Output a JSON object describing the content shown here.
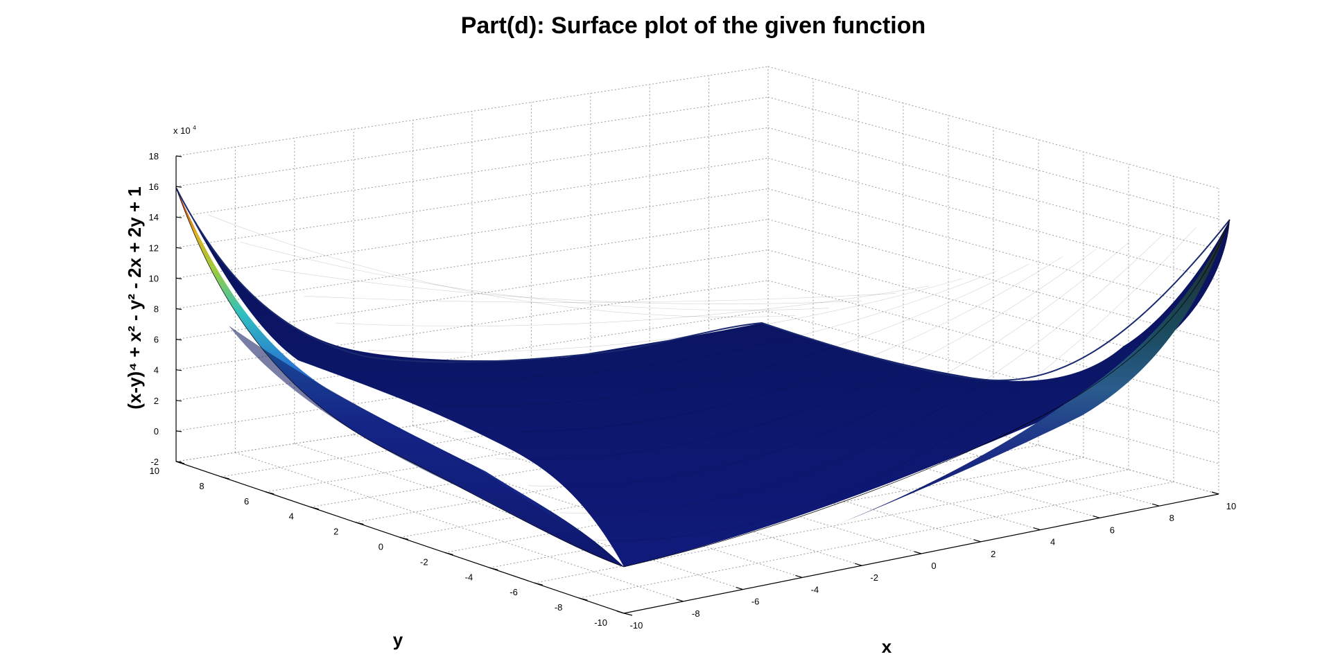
{
  "chart_data": {
    "type": "surface",
    "title": "Part(d): Surface plot of the given function",
    "function": "(x-y)^4 + x^2 - y^2 - 2x + 2y + 1",
    "xlabel": "x",
    "ylabel": "y",
    "zlabel": "(x-y)⁴ + x² - y² - 2x + 2y + 1",
    "xlim": [
      -10,
      10
    ],
    "ylim": [
      -10,
      10
    ],
    "zlim": [
      -2,
      18
    ],
    "z_multiplier": "x 10",
    "z_multiplier_exp": "4",
    "x_ticks": [
      "-10",
      "-8",
      "-6",
      "-4",
      "-2",
      "0",
      "2",
      "4",
      "6",
      "8",
      "10"
    ],
    "y_ticks": [
      "-10",
      "-8",
      "-6",
      "-4",
      "-2",
      "0",
      "2",
      "4",
      "6",
      "8",
      "10"
    ],
    "z_ticks": [
      "-2",
      "0",
      "2",
      "4",
      "6",
      "8",
      "10",
      "12",
      "14",
      "16",
      "18"
    ],
    "corner_values_x1e4": [
      {
        "x": -10,
        "y": 10,
        "z": 16.0
      },
      {
        "x": 10,
        "y": -10,
        "z": 16.0
      },
      {
        "x": -10,
        "y": -10,
        "z": 0.0
      },
      {
        "x": 10,
        "y": 10,
        "z": 0.0
      }
    ],
    "colormap": "jet",
    "grid": true
  }
}
